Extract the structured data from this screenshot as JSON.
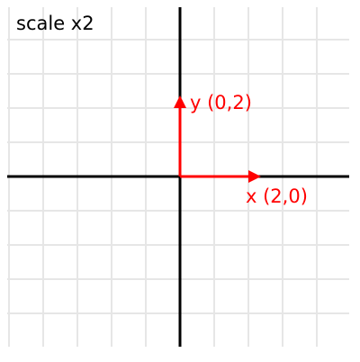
{
  "title": "scale x2",
  "vectors": {
    "x": {
      "label": "x (2,0)",
      "components": [
        2,
        0
      ]
    },
    "y": {
      "label": "y (0,2)",
      "components": [
        0,
        2
      ]
    }
  },
  "colors": {
    "background": "#ffffff",
    "grid": "#e6e6e6",
    "axes": "#000000",
    "vectors": "#ff0000",
    "title": "#000000"
  },
  "grid": true
}
